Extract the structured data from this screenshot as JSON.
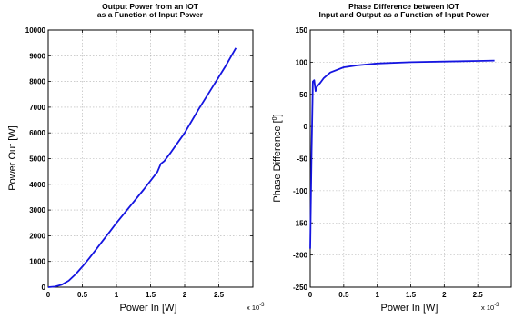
{
  "chart_data": [
    {
      "type": "line",
      "title": [
        "Output Power from an IOT",
        "as a Function of Input Power"
      ],
      "xlabel": "Power In [W]",
      "ylabel": "Power Out [W]",
      "x_multiplier": "x 10",
      "x_multiplier_exp": "-3",
      "xlim": [
        0,
        3
      ],
      "ylim": [
        0,
        10000
      ],
      "xticks": [
        "0",
        "0.5",
        "1",
        "1.5",
        "2",
        "2.5"
      ],
      "xtick_values": [
        0,
        0.5,
        1,
        1.5,
        2,
        2.5
      ],
      "yticks": [
        "0",
        "1000",
        "2000",
        "3000",
        "4000",
        "5000",
        "6000",
        "7000",
        "8000",
        "9000",
        "10000"
      ],
      "ytick_values": [
        0,
        1000,
        2000,
        3000,
        4000,
        5000,
        6000,
        7000,
        8000,
        9000,
        10000
      ],
      "grid": true,
      "color": "#1515e0",
      "series": [
        {
          "x": [
            0,
            0.1,
            0.2,
            0.3,
            0.4,
            0.5,
            0.6,
            0.7,
            0.8,
            0.9,
            1.0,
            1.2,
            1.4,
            1.6,
            1.65,
            1.7,
            1.8,
            2.0,
            2.2,
            2.4,
            2.6,
            2.75
          ],
          "y": [
            0,
            20,
            100,
            250,
            500,
            800,
            1120,
            1460,
            1810,
            2150,
            2500,
            3150,
            3800,
            4480,
            4800,
            4900,
            5250,
            6000,
            6900,
            7750,
            8600,
            9300
          ]
        }
      ]
    },
    {
      "type": "line",
      "title": [
        "Phase Difference between IOT",
        "Input and Output as a Function of Input Power"
      ],
      "xlabel": "Power In [W]",
      "ylabel": "Phase Difference [",
      "ylabel_degree": "0",
      "ylabel_tail": "]",
      "x_multiplier": "x 10",
      "x_multiplier_exp": "-3",
      "xlim": [
        0,
        3
      ],
      "ylim": [
        -250,
        150
      ],
      "xticks": [
        "0",
        "0.5",
        "1",
        "1.5",
        "2",
        "2.5"
      ],
      "xtick_values": [
        0,
        0.5,
        1,
        1.5,
        2,
        2.5
      ],
      "yticks": [
        "-250",
        "-200",
        "-150",
        "-100",
        "-50",
        "0",
        "50",
        "100",
        "150"
      ],
      "ytick_values": [
        -250,
        -200,
        -150,
        -100,
        -50,
        0,
        50,
        100,
        150
      ],
      "grid": true,
      "color": "#1515e0",
      "series": [
        {
          "x": [
            0,
            0.02,
            0.04,
            0.06,
            0.08,
            0.1,
            0.15,
            0.2,
            0.3,
            0.5,
            0.7,
            1.0,
            1.5,
            2.0,
            2.5,
            2.75
          ],
          "y": [
            -190,
            -40,
            70,
            72,
            55,
            62,
            68,
            75,
            84,
            92,
            95,
            98,
            100,
            101,
            102,
            102.5
          ]
        }
      ]
    }
  ]
}
